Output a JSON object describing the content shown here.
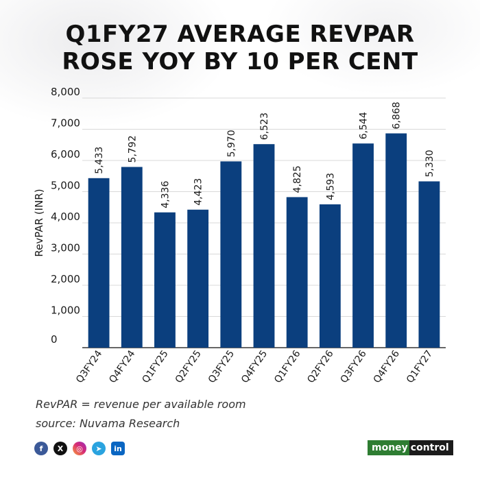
{
  "title_lines": [
    "Q1FY27 AVERAGE REVPAR",
    "ROSE YOY BY 10 PER CENT"
  ],
  "chart_data": {
    "type": "bar",
    "title": "Q1FY27 AVERAGE REVPAR ROSE YOY BY 10 PER CENT",
    "ylabel": "RevPAR (INR)",
    "xlabel": "",
    "ylim": [
      0,
      8000
    ],
    "yticks": [
      0,
      1000,
      2000,
      3000,
      4000,
      5000,
      6000,
      7000,
      8000
    ],
    "ytick_labels": [
      "0",
      "1,000",
      "2,000",
      "3,000",
      "4,000",
      "5,000",
      "6,000",
      "7,000",
      "8,000"
    ],
    "grid": true,
    "categories": [
      "Q3FY24",
      "Q4FY24",
      "Q1FY25",
      "Q2FY25",
      "Q3FY25",
      "Q4FY25",
      "Q1FY26",
      "Q2FY26",
      "Q3FY26",
      "Q4FY26",
      "Q1FY27"
    ],
    "values": [
      5433,
      5792,
      4336,
      4423,
      5970,
      6523,
      4825,
      4593,
      6544,
      6868,
      5330
    ],
    "value_labels": [
      "5,433",
      "5,792",
      "4,336",
      "4,423",
      "5,970",
      "6,523",
      "4,825",
      "4,593",
      "6,544",
      "6,868",
      "5,330"
    ],
    "bar_color": "#0b3f7e",
    "grid_color": "#d8d8d8"
  },
  "footnotes": {
    "definition": "RevPAR = revenue per available room",
    "source": "source: Nuvama Research"
  },
  "socials": [
    {
      "name": "facebook-icon",
      "glyph": "f"
    },
    {
      "name": "x-icon",
      "glyph": "X"
    },
    {
      "name": "instagram-icon",
      "glyph": "◎"
    },
    {
      "name": "telegram-icon",
      "glyph": "➤"
    },
    {
      "name": "linkedin-icon",
      "glyph": "in"
    }
  ],
  "brand": {
    "part1": "money",
    "part2": "control"
  }
}
